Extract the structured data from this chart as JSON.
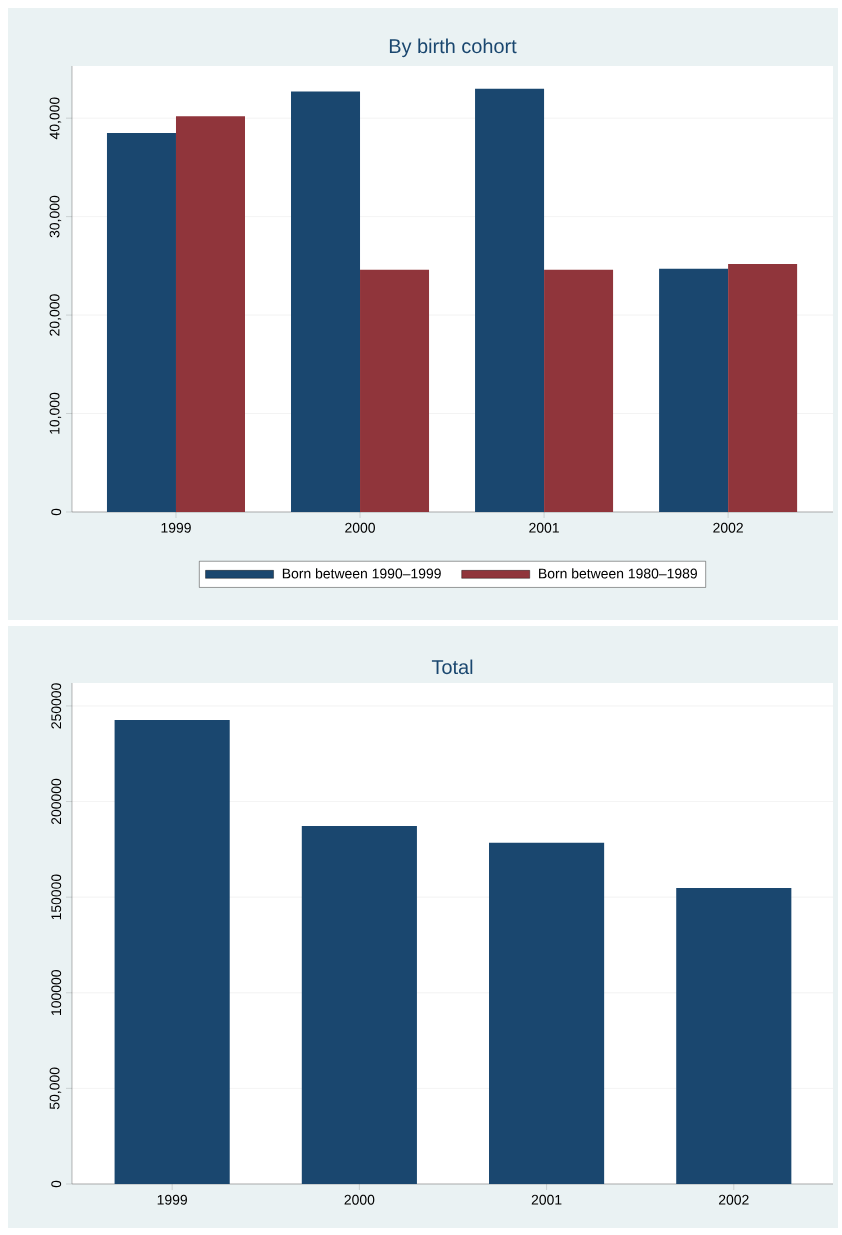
{
  "chart_data": [
    {
      "type": "bar",
      "title": "By birth cohort",
      "categories": [
        "1999",
        "2000",
        "2001",
        "2002"
      ],
      "series": [
        {
          "name": "Born between 1990–1999",
          "color": "#1a476f",
          "values": [
            38500,
            42700,
            43000,
            24700
          ]
        },
        {
          "name": "Born between 1980–1989",
          "color": "#90353b",
          "values": [
            40200,
            24600,
            24600,
            25200
          ]
        }
      ],
      "ylim": [
        0,
        45300
      ],
      "yticks": [
        0,
        {
          "value": 10000,
          "label": "10,000"
        },
        {
          "value": 20000,
          "label": "20,000"
        },
        {
          "value": 30000,
          "label": "30,000"
        },
        {
          "value": 40000,
          "label": "40,000"
        }
      ],
      "grid": "y",
      "legend": "bottom"
    },
    {
      "type": "bar",
      "title": "Total",
      "categories": [
        "1999",
        "2000",
        "2001",
        "2002"
      ],
      "values": [
        242700,
        187200,
        178400,
        154800
      ],
      "color": "#1a476f",
      "ylim": [
        0,
        262000
      ],
      "yticks": [
        0,
        {
          "value": 50000,
          "label": "50,000"
        },
        100000,
        150000,
        200000,
        250000
      ],
      "grid": "y"
    }
  ]
}
